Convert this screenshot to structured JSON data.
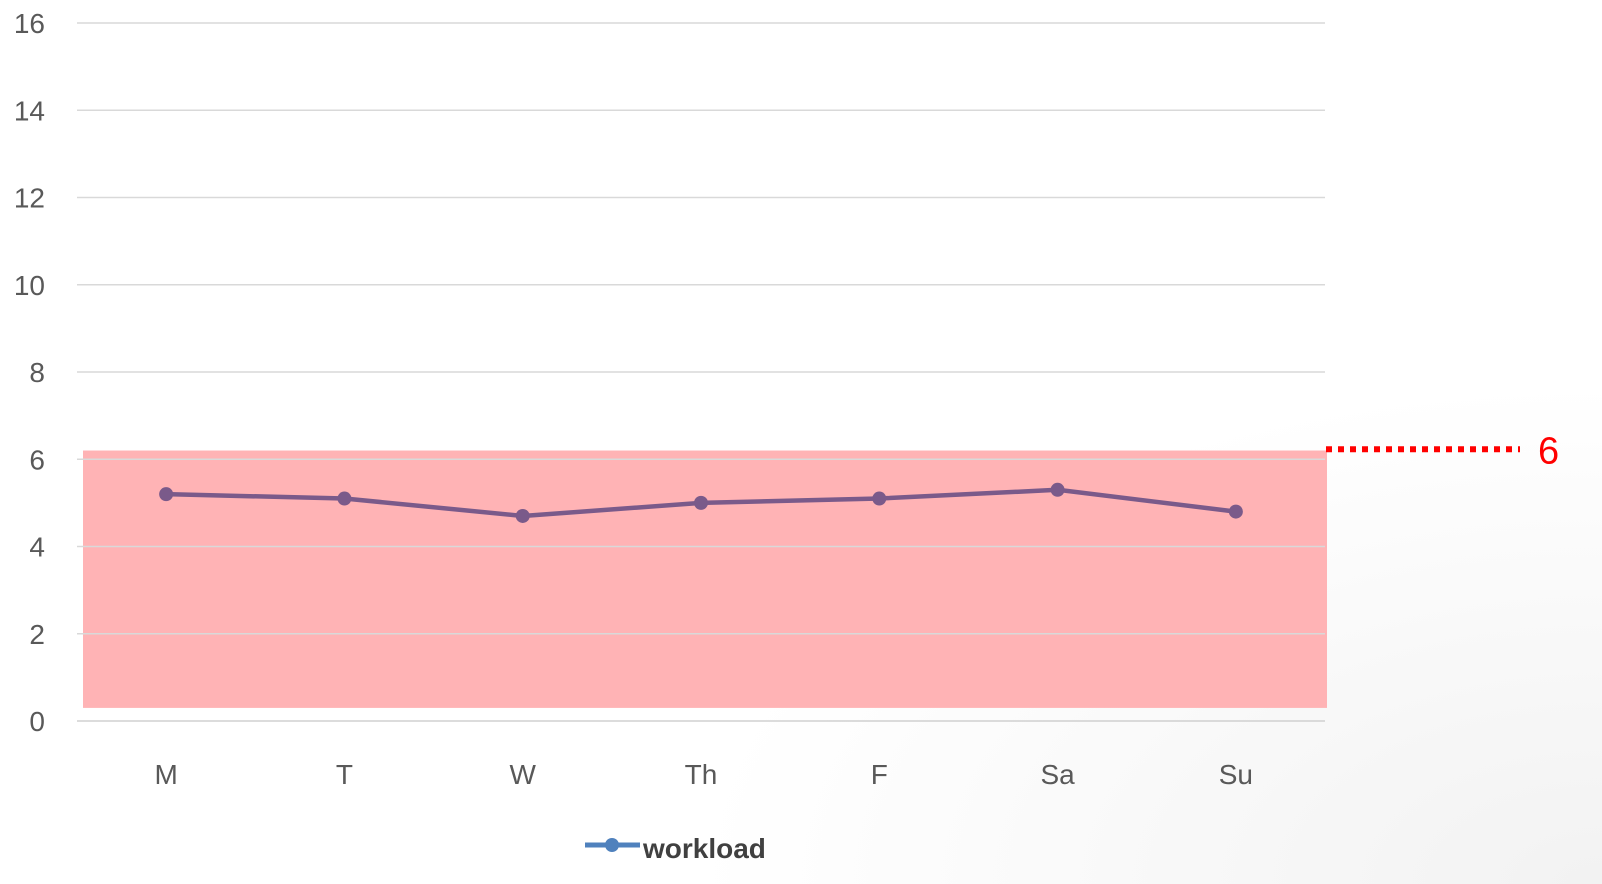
{
  "chart_data": {
    "type": "line",
    "categories": [
      "M",
      "T",
      "W",
      "Th",
      "F",
      "Sa",
      "Su"
    ],
    "series": [
      {
        "name": "workload",
        "values": [
          5.2,
          5.1,
          4.7,
          5.0,
          5.1,
          5.3,
          4.8
        ],
        "color": "#7a5a8a",
        "legend_color": "#4f81bd"
      }
    ],
    "ylim": [
      0,
      16
    ],
    "yticks": [
      "0",
      "2",
      "4",
      "6",
      "8",
      "10",
      "12",
      "14",
      "16"
    ],
    "grid": true,
    "legend_position": "bottom",
    "shaded_band": {
      "from": 0.3,
      "to": 6.2,
      "color": "#ffb3b5"
    },
    "threshold": {
      "value": 6,
      "label": "6",
      "color": "#ff0000"
    }
  }
}
